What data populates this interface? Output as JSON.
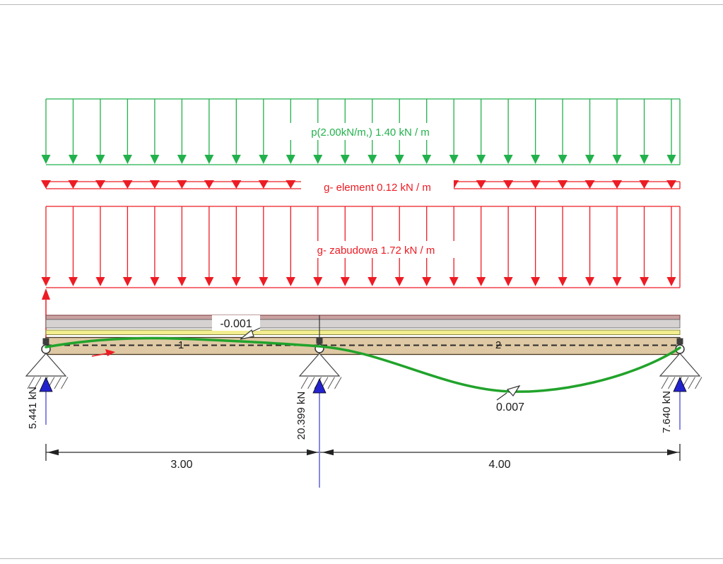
{
  "loads": {
    "live": {
      "label": "p(2.00kN/m,) 1.40 kN / m",
      "color": "#22B14C"
    },
    "element": {
      "label": "g- element 0.12 kN / m",
      "color": "#ED1C24"
    },
    "zabudowa": {
      "label": "g- zabudowa 1.72 kN / m",
      "color": "#ED1C24"
    }
  },
  "beam": {
    "span1": {
      "number": "1",
      "length": "3.00"
    },
    "span2": {
      "number": "2",
      "length": "4.00"
    }
  },
  "reactions": {
    "color": "#2323CE",
    "left": {
      "value": "5.441 kN"
    },
    "middle": {
      "value": "20.399 kN"
    },
    "right": {
      "value": "7.640 kN"
    }
  },
  "deflection": {
    "color": "#21A32B",
    "span1_extreme": "-0.001",
    "span2_extreme": "0.007"
  }
}
